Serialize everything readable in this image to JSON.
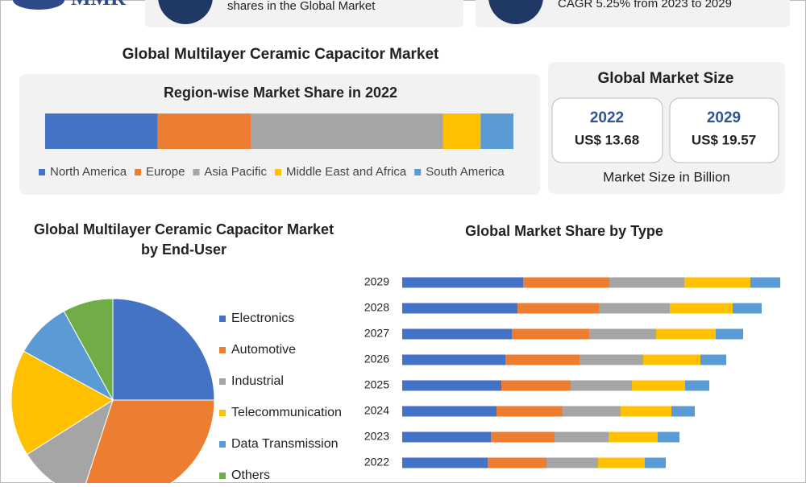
{
  "header": {
    "logo": "MMR",
    "cards": [
      "shares in the Global Market",
      "CAGR 5.25% from 2023 to 2029"
    ]
  },
  "title": "Global Multilayer Ceramic Capacitor Market",
  "market_size": {
    "title": "Global Market Size",
    "items": [
      {
        "year": "2022",
        "value": "US$ 13.68"
      },
      {
        "year": "2029",
        "value": "US$ 19.57"
      }
    ],
    "note": "Market Size in Billion"
  },
  "chart_data": [
    {
      "type": "stacked-bar",
      "title": "Region-wise Market Share in 2022",
      "xlim": [
        0,
        100
      ],
      "legend": "bottom",
      "series": [
        {
          "name": "North America",
          "color": "#4472c4",
          "values": [
            24
          ]
        },
        {
          "name": "Europe",
          "color": "#ed7d31",
          "values": [
            20
          ]
        },
        {
          "name": "Asia Pacific",
          "color": "#a5a5a5",
          "values": [
            41
          ]
        },
        {
          "name": "Middle East and Africa",
          "color": "#ffc000",
          "values": [
            8
          ]
        },
        {
          "name": "South America",
          "color": "#5b9bd5",
          "values": [
            7
          ]
        }
      ]
    },
    {
      "type": "pie",
      "title": [
        "Global Multilayer Ceramic Capacitor Market",
        "by End-User"
      ],
      "legend": "right",
      "categories": [
        "Electronics",
        "Automotive",
        "Industrial",
        "Telecommunication",
        "Data Transmission",
        "Others"
      ],
      "colors": [
        "#4472c4",
        "#ed7d31",
        "#a5a5a5",
        "#ffc000",
        "#5b9bd5",
        "#70ad47"
      ],
      "values": [
        25,
        30,
        11,
        17,
        9,
        8
      ]
    },
    {
      "type": "stacked-bar",
      "title": "Global Market Share by Type",
      "xlim": [
        0,
        480
      ],
      "categories": [
        "2022",
        "2023",
        "2024",
        "2025",
        "2026",
        "2027",
        "2028",
        "2029"
      ],
      "series": [
        {
          "color": "#4472c4",
          "values": [
            106,
            110,
            117,
            123,
            128,
            136,
            143,
            150
          ]
        },
        {
          "color": "#ed7d31",
          "values": [
            73,
            79,
            82,
            86,
            92,
            96,
            101,
            107
          ]
        },
        {
          "color": "#a5a5a5",
          "values": [
            64,
            67,
            72,
            76,
            79,
            83,
            88,
            93
          ]
        },
        {
          "color": "#ffc000",
          "values": [
            58,
            61,
            63,
            66,
            71,
            74,
            78,
            82
          ]
        },
        {
          "color": "#5b9bd5",
          "values": [
            26,
            27,
            29,
            30,
            32,
            34,
            36,
            37
          ]
        }
      ]
    }
  ]
}
